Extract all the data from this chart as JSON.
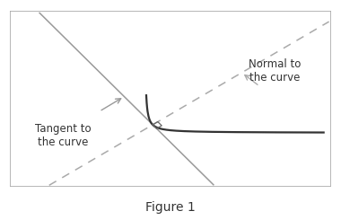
{
  "title": "Figure 1",
  "bg_color": "#ffffff",
  "box_color": "#aaaaaa",
  "curve_color": "#333333",
  "tangent_color": "#999999",
  "normal_color": "#aaaaaa",
  "tangent_label": "Tangent to\nthe curve",
  "normal_label": "Normal to\nthe curve",
  "point_x": 0.0,
  "point_y": 0.0,
  "xlim": [
    -3.5,
    5.5
  ],
  "ylim": [
    -2.0,
    4.5
  ],
  "fig_width": 3.8,
  "fig_height": 2.45,
  "dpi": 100
}
